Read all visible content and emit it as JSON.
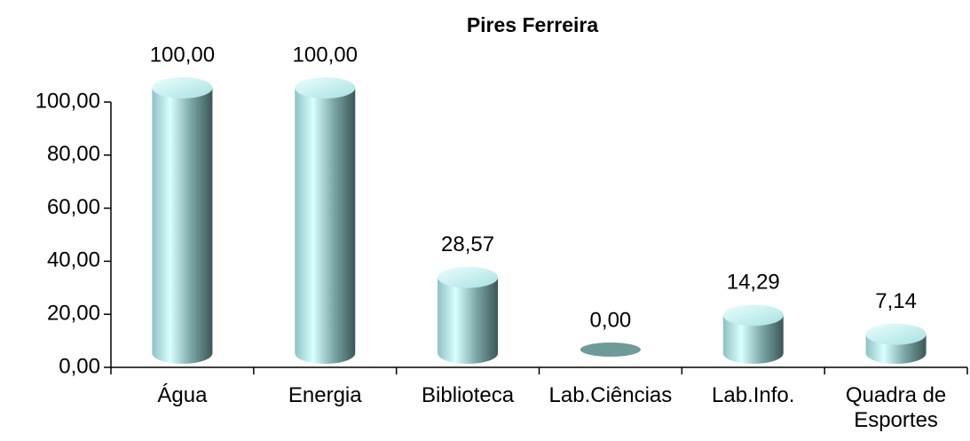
{
  "chart_data": {
    "type": "bar",
    "title": "Pires Ferreira",
    "categories": [
      "Água",
      "Energia",
      "Biblioteca",
      "Lab.Ciências",
      "Lab.Info.",
      "Quadra de Esportes"
    ],
    "values": [
      100,
      100,
      28.57,
      0,
      14.29,
      7.14
    ],
    "value_labels": [
      "100,00",
      "100,00",
      "28,57",
      "0,00",
      "14,29",
      "7,14"
    ],
    "color": "#7fb3b3",
    "ylim": [
      0,
      100
    ],
    "yticks": [
      {
        "value": 0,
        "label": "0,00"
      },
      {
        "value": 20,
        "label": "20,00"
      },
      {
        "value": 40,
        "label": "40,00"
      },
      {
        "value": 60,
        "label": "60,00"
      },
      {
        "value": 80,
        "label": "80,00"
      },
      {
        "value": 100,
        "label": "100,00"
      }
    ],
    "grid": false
  }
}
